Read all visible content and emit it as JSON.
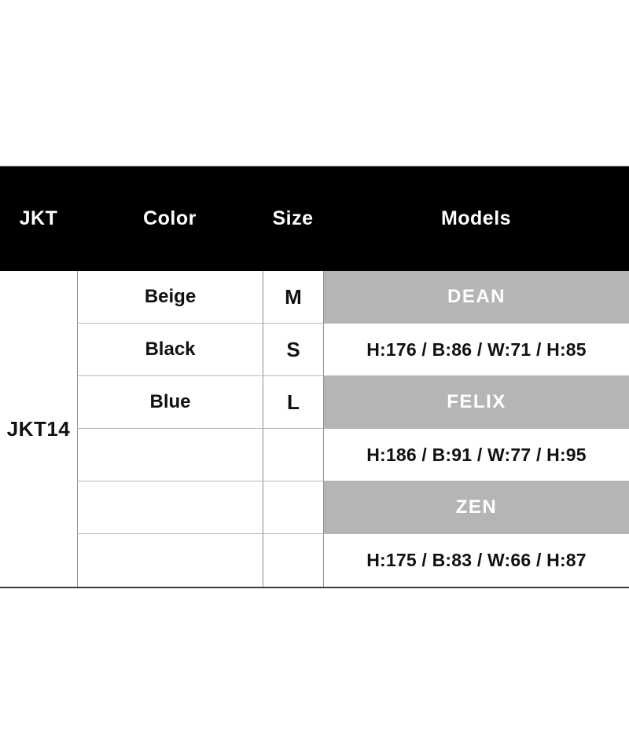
{
  "colors": {
    "header_bg": "#000000",
    "header_text": "#ffffff",
    "model_band_bg": "#b5b5b5",
    "model_band_text": "#ffffff",
    "body_text": "#111111",
    "grid_line": "#8f8f8f",
    "row_line": "#b8b8b8",
    "table_bottom_border": "#3c3c3c",
    "page_bg": "#ffffff"
  },
  "header": {
    "columns": [
      "JKT",
      "Color",
      "Size",
      "Models"
    ]
  },
  "product_code": "JKT14",
  "rows": [
    {
      "color": "Beige",
      "size": "M",
      "models": "DEAN",
      "kind": "model-name"
    },
    {
      "color": "Black",
      "size": "S",
      "models": "H:176 / B:86 / W:71 / H:85",
      "kind": "measurements"
    },
    {
      "color": "Blue",
      "size": "L",
      "models": "FELIX",
      "kind": "model-name"
    },
    {
      "color": "",
      "size": "",
      "models": "H:186 / B:91 / W:77 / H:95",
      "kind": "measurements"
    },
    {
      "color": "",
      "size": "",
      "models": "ZEN",
      "kind": "model-name"
    },
    {
      "color": "",
      "size": "",
      "models": "H:175 / B:83 / W:66 / H:87",
      "kind": "measurements"
    }
  ],
  "chart_data": {
    "type": "table",
    "columns": [
      "JKT",
      "Color",
      "Size",
      "Models"
    ],
    "rows": [
      [
        "JKT14",
        "Beige",
        "M",
        "DEAN"
      ],
      [
        "",
        "Black",
        "S",
        "H:176 / B:86 / W:71 / H:85"
      ],
      [
        "",
        "Blue",
        "L",
        "FELIX"
      ],
      [
        "",
        "",
        "",
        "H:186 / B:91 / W:77 / H:95"
      ],
      [
        "",
        "",
        "",
        "ZEN"
      ],
      [
        "",
        "",
        "",
        "H:175 / B:83 / W:66 / H:87"
      ]
    ],
    "layout_hints": {
      "merged_first_column": "JKT14 spans all 6 body rows",
      "model_name_rows_background": "#b5b5b5",
      "header_background": "#000000"
    }
  }
}
